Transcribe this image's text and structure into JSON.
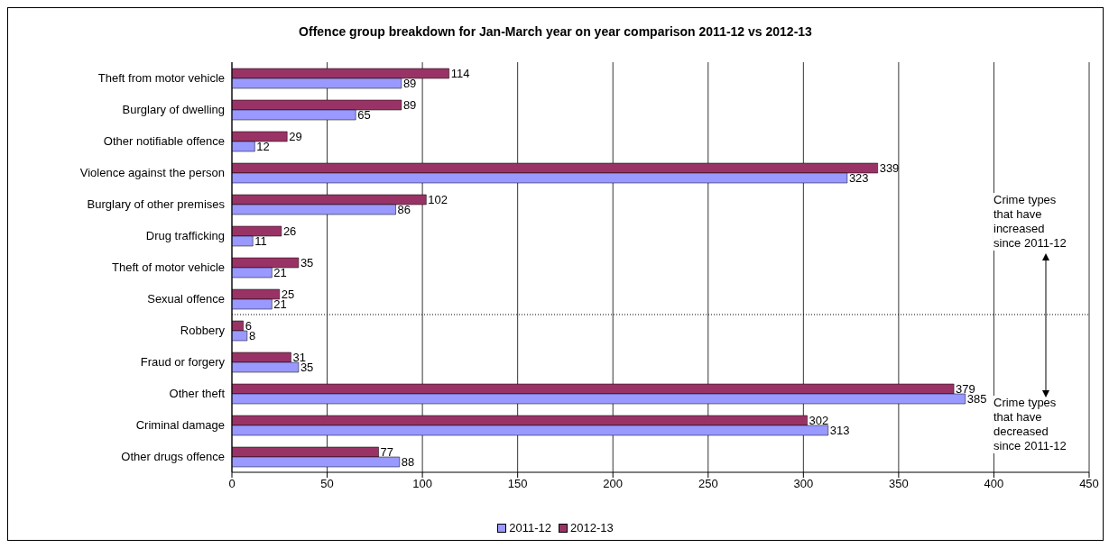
{
  "chart_data": {
    "type": "bar",
    "orientation": "horizontal",
    "title": "Offence group breakdown for Jan-March year on year comparison 2011-12 vs 2012-13",
    "categories": [
      "Theft from motor vehicle",
      "Burglary of dwelling",
      "Other notifiable offence",
      "Violence against the person",
      "Burglary of other premises",
      "Drug trafficking",
      "Theft of motor vehicle",
      "Sexual offence",
      "Robbery",
      "Fraud or forgery",
      "Other theft",
      "Criminal damage",
      "Other drugs offence"
    ],
    "series": [
      {
        "name": "2011-12",
        "color": "#9999ff",
        "values": [
          89,
          65,
          12,
          323,
          86,
          11,
          21,
          21,
          8,
          35,
          385,
          313,
          88
        ]
      },
      {
        "name": "2012-13",
        "color": "#993366",
        "values": [
          114,
          89,
          29,
          339,
          102,
          26,
          35,
          25,
          6,
          31,
          379,
          302,
          77
        ]
      }
    ],
    "xlim": [
      0,
      450
    ],
    "xticks": [
      0,
      50,
      100,
      150,
      200,
      250,
      300,
      350,
      400,
      450
    ],
    "grid": "x",
    "legend": "bottom",
    "data_labels": true,
    "ref_lines": [
      {
        "axis": "y",
        "value": "Robbery",
        "color": "#000000",
        "line_style": "dotted"
      }
    ],
    "annotations": [
      "Crime types that have increased since 2011-12",
      "Crime types that have decreased since 2011-12"
    ]
  }
}
